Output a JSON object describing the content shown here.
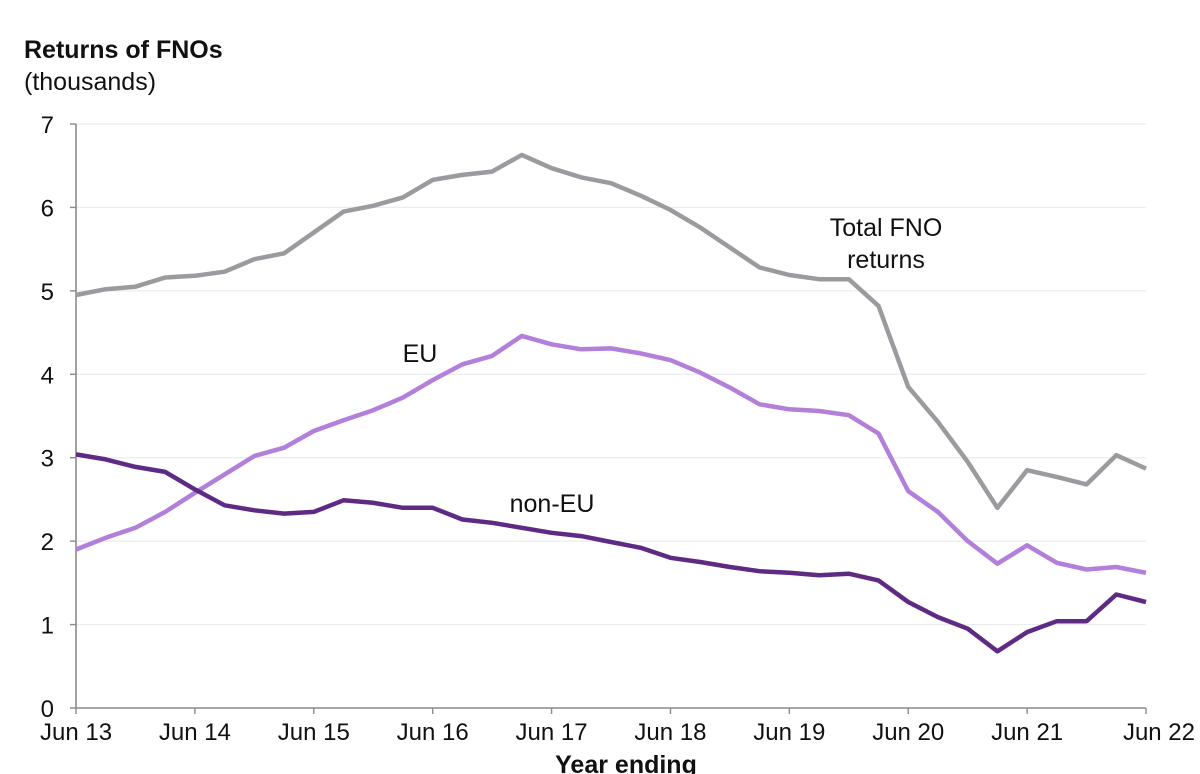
{
  "chart_data": {
    "type": "line",
    "title": "Returns of FNOs",
    "ylabel": "(thousands)",
    "xlabel": "Year ending",
    "ylim": [
      0,
      7
    ],
    "yticks": [
      "0",
      "1",
      "2",
      "3",
      "4",
      "5",
      "6",
      "7"
    ],
    "xtick_labels": [
      "Jun 13",
      "Jun 14",
      "Jun 15",
      "Jun 16",
      "Jun 17",
      "Jun 18",
      "Jun 19",
      "Jun 20",
      "Jun 21",
      "Jun 22"
    ],
    "x": [
      "Jun 13",
      "Sep 13",
      "Dec 13",
      "Mar 14",
      "Jun 14",
      "Sep 14",
      "Dec 14",
      "Mar 15",
      "Jun 15",
      "Sep 15",
      "Dec 15",
      "Mar 16",
      "Jun 16",
      "Sep 16",
      "Dec 16",
      "Mar 17",
      "Jun 17",
      "Sep 17",
      "Dec 17",
      "Mar 18",
      "Jun 18",
      "Sep 18",
      "Dec 18",
      "Mar 19",
      "Jun 19",
      "Sep 19",
      "Dec 19",
      "Mar 20",
      "Jun 20",
      "Sep 20",
      "Dec 20",
      "Mar 21",
      "Jun 21",
      "Sep 21",
      "Dec 21",
      "Mar 22",
      "Jun 22"
    ],
    "series": [
      {
        "name": "Total FNO returns",
        "label_lines": [
          "Total FNO",
          "returns"
        ],
        "color": "#9b9a9f",
        "values": [
          4.95,
          5.02,
          5.05,
          5.16,
          5.18,
          5.23,
          5.38,
          5.45,
          5.7,
          5.95,
          6.02,
          6.12,
          6.33,
          6.39,
          6.43,
          6.63,
          6.47,
          6.36,
          6.29,
          6.14,
          5.97,
          5.76,
          5.52,
          5.28,
          5.19,
          5.14,
          5.14,
          4.82,
          3.85,
          3.43,
          2.95,
          2.4,
          2.85,
          2.77,
          2.68,
          3.03,
          2.87
        ]
      },
      {
        "name": "EU",
        "label_lines": [
          "EU"
        ],
        "color": "#b27fdb",
        "values": [
          1.9,
          2.04,
          2.16,
          2.35,
          2.58,
          2.8,
          3.02,
          3.12,
          3.32,
          3.45,
          3.57,
          3.72,
          3.93,
          4.12,
          4.22,
          4.46,
          4.36,
          4.3,
          4.31,
          4.25,
          4.17,
          4.02,
          3.84,
          3.64,
          3.58,
          3.56,
          3.51,
          3.29,
          2.6,
          2.35,
          2.0,
          1.73,
          1.95,
          1.74,
          1.66,
          1.69,
          1.62
        ]
      },
      {
        "name": "non-EU",
        "label_lines": [
          "non-EU"
        ],
        "color": "#5e2a84",
        "values": [
          3.04,
          2.98,
          2.89,
          2.83,
          2.62,
          2.43,
          2.37,
          2.33,
          2.35,
          2.49,
          2.46,
          2.4,
          2.4,
          2.26,
          2.22,
          2.16,
          2.1,
          2.06,
          1.99,
          1.92,
          1.8,
          1.75,
          1.69,
          1.64,
          1.62,
          1.59,
          1.61,
          1.53,
          1.27,
          1.09,
          0.95,
          0.68,
          0.91,
          1.04,
          1.04,
          1.36,
          1.27
        ]
      }
    ]
  }
}
